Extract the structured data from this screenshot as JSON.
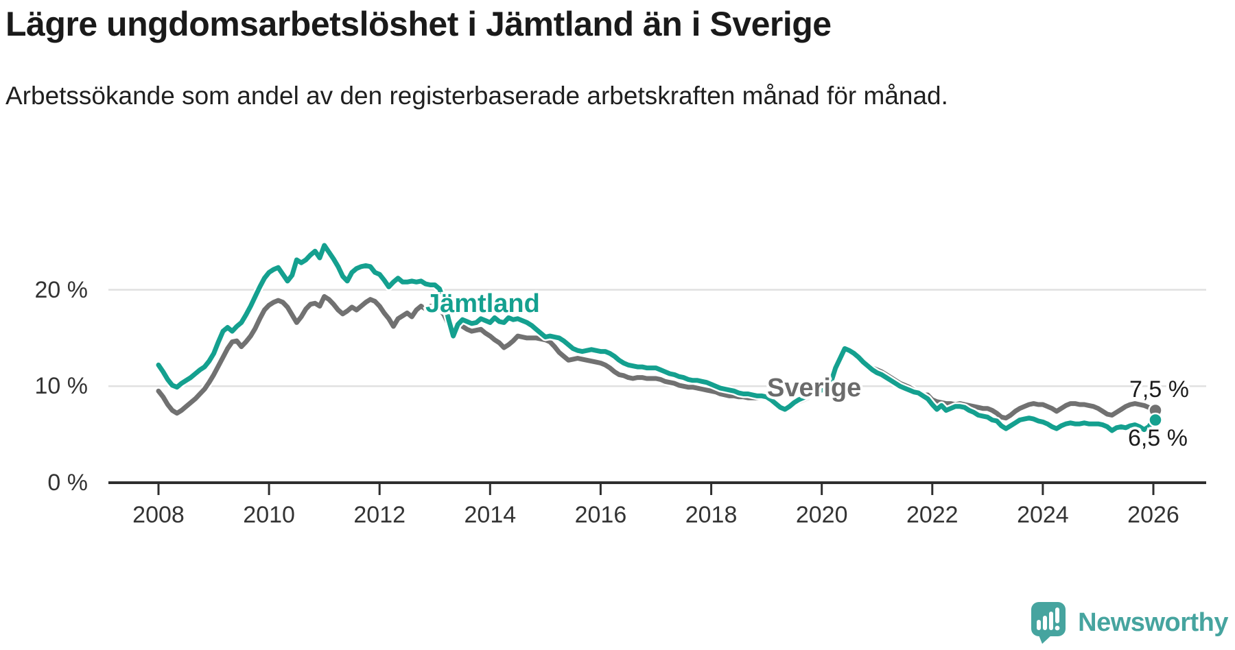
{
  "header": {
    "title": "Lägre ungdomsarbetslöshet i Jämtland än i Sverige",
    "subtitle": "Arbetssökande som andel av den registerbaserade arbetskraften månad för månad."
  },
  "series_labels": {
    "jamtland": "Jämtland",
    "sverige": "Sverige"
  },
  "end_labels": {
    "sverige": "7,5 %",
    "jamtland": "6,5 %"
  },
  "footer": {
    "brand": "Newsworthy"
  },
  "colors": {
    "jamtland": "#14a08f",
    "sverige": "#717171",
    "axis": "#2e2e2e",
    "grid": "#e0e0e0",
    "tick_label": "#333333",
    "value_label": "#1c1c1c",
    "brand_teal": "#46a49f"
  },
  "chart_data": {
    "type": "line",
    "title": "Lägre ungdomsarbetslöshet i Jämtland än i Sverige",
    "subtitle": "Arbetssökande som andel av den registerbaserade arbetskraften månad för månad.",
    "x_start_year": 2008,
    "x_end_year": 2026,
    "x_interval_months": 1,
    "x_tick_years": [
      2008,
      2010,
      2012,
      2014,
      2016,
      2018,
      2020,
      2022,
      2024,
      2026
    ],
    "y_ticks": [
      {
        "value": 20,
        "label": "20 %"
      },
      {
        "value": 10,
        "label": "10 %"
      },
      {
        "value": 0,
        "label": "0 %"
      }
    ],
    "ylim": [
      0,
      26
    ],
    "grid": "horizontal",
    "legend_position": "inline-labels",
    "unit": "percent",
    "series": [
      {
        "name": "Sverige",
        "color": "#717171",
        "end_label": "7,5 %",
        "end_value": 7.5,
        "values": [
          9.5,
          8.9,
          8.1,
          7.5,
          7.2,
          7.5,
          7.9,
          8.3,
          8.7,
          9.2,
          9.7,
          10.4,
          11.2,
          12.1,
          13.0,
          13.9,
          14.6,
          14.7,
          14.1,
          14.6,
          15.2,
          16.0,
          17.0,
          17.9,
          18.4,
          18.7,
          18.9,
          18.7,
          18.2,
          17.4,
          16.6,
          17.2,
          18.0,
          18.5,
          18.6,
          18.3,
          19.3,
          19.0,
          18.5,
          17.9,
          17.5,
          17.8,
          18.2,
          17.9,
          18.3,
          18.7,
          19.0,
          18.8,
          18.3,
          17.6,
          17.0,
          16.2,
          17.0,
          17.3,
          17.6,
          17.2,
          17.9,
          18.3,
          18.0,
          18.3,
          18.3,
          18.0,
          17.4,
          16.4,
          15.9,
          16.4,
          16.2,
          15.9,
          15.7,
          15.8,
          15.9,
          15.5,
          15.2,
          14.8,
          14.5,
          14.0,
          14.3,
          14.7,
          15.2,
          15.1,
          15.0,
          15.0,
          15.0,
          14.9,
          14.8,
          14.6,
          14.1,
          13.5,
          13.1,
          12.7,
          12.8,
          12.9,
          12.8,
          12.7,
          12.6,
          12.5,
          12.4,
          12.2,
          11.9,
          11.5,
          11.2,
          11.1,
          10.9,
          10.8,
          10.9,
          10.9,
          10.8,
          10.8,
          10.8,
          10.7,
          10.5,
          10.4,
          10.3,
          10.1,
          10.0,
          9.9,
          9.9,
          9.8,
          9.7,
          9.6,
          9.5,
          9.4,
          9.2,
          9.1,
          9.0,
          9.0,
          8.9,
          8.9,
          8.8,
          8.8,
          8.8,
          8.9,
          8.9,
          8.6,
          8.2,
          7.8,
          7.6,
          7.8,
          8.1,
          8.4,
          8.6,
          8.8,
          9.1,
          9.4,
          9.7,
          9.9,
          10.7,
          12.1,
          13.1,
          13.6,
          13.7,
          13.5,
          13.1,
          12.7,
          12.3,
          11.9,
          11.7,
          11.5,
          11.2,
          10.9,
          10.6,
          10.3,
          10.1,
          9.9,
          9.6,
          9.3,
          9.1,
          9.1,
          8.6,
          8.4,
          8.3,
          8.2,
          8.2,
          8.1,
          8.2,
          8.1,
          8.0,
          7.9,
          7.8,
          7.7,
          7.7,
          7.5,
          7.2,
          6.8,
          6.7,
          7.0,
          7.4,
          7.7,
          7.9,
          8.1,
          8.2,
          8.1,
          8.1,
          7.9,
          7.7,
          7.4,
          7.7,
          8.0,
          8.2,
          8.2,
          8.1,
          8.1,
          8.0,
          7.9,
          7.7,
          7.4,
          7.1,
          7.0,
          7.3,
          7.6,
          7.9,
          8.1,
          8.2,
          8.1,
          8.0,
          7.8,
          7.5
        ]
      },
      {
        "name": "Jämtland",
        "color": "#14a08f",
        "end_label": "6,5 %",
        "end_value": 6.5,
        "values": [
          12.2,
          11.5,
          10.7,
          10.1,
          9.9,
          10.3,
          10.6,
          10.9,
          11.3,
          11.7,
          12.0,
          12.6,
          13.4,
          14.6,
          15.7,
          16.1,
          15.7,
          16.2,
          16.6,
          17.4,
          18.3,
          19.3,
          20.3,
          21.2,
          21.8,
          22.1,
          22.3,
          21.6,
          20.9,
          21.5,
          23.1,
          22.8,
          23.1,
          23.6,
          24.0,
          23.3,
          24.6,
          23.9,
          23.2,
          22.4,
          21.4,
          20.9,
          21.8,
          22.2,
          22.4,
          22.5,
          22.4,
          21.8,
          21.6,
          21.0,
          20.3,
          20.8,
          21.2,
          20.8,
          20.8,
          20.9,
          20.8,
          20.9,
          20.6,
          20.5,
          20.5,
          20.1,
          18.9,
          16.9,
          15.2,
          16.4,
          16.9,
          16.7,
          16.5,
          16.6,
          17.0,
          16.8,
          16.6,
          17.1,
          16.7,
          16.6,
          17.1,
          16.9,
          17.0,
          16.8,
          16.6,
          16.3,
          15.9,
          15.5,
          15.1,
          15.2,
          15.1,
          15.0,
          14.7,
          14.3,
          13.9,
          13.7,
          13.6,
          13.7,
          13.8,
          13.7,
          13.6,
          13.6,
          13.4,
          13.1,
          12.7,
          12.4,
          12.2,
          12.1,
          12.0,
          12.0,
          11.9,
          11.9,
          11.9,
          11.7,
          11.5,
          11.3,
          11.2,
          11.0,
          10.9,
          10.7,
          10.6,
          10.6,
          10.5,
          10.4,
          10.2,
          10.0,
          9.8,
          9.7,
          9.6,
          9.5,
          9.3,
          9.2,
          9.2,
          9.1,
          9.0,
          9.0,
          8.9,
          8.6,
          8.2,
          7.8,
          7.6,
          7.9,
          8.3,
          8.6,
          8.8,
          9.0,
          9.2,
          9.4,
          9.6,
          9.7,
          10.4,
          11.9,
          12.9,
          13.9,
          13.7,
          13.4,
          13.0,
          12.5,
          12.1,
          11.7,
          11.4,
          11.2,
          10.9,
          10.6,
          10.3,
          10.0,
          9.8,
          9.6,
          9.4,
          9.3,
          9.0,
          8.7,
          8.1,
          7.6,
          8.0,
          7.5,
          7.7,
          7.9,
          7.9,
          7.8,
          7.5,
          7.3,
          7.0,
          6.9,
          6.8,
          6.5,
          6.4,
          5.9,
          5.6,
          5.9,
          6.2,
          6.5,
          6.6,
          6.7,
          6.6,
          6.4,
          6.3,
          6.1,
          5.8,
          5.6,
          5.9,
          6.1,
          6.2,
          6.1,
          6.1,
          6.2,
          6.1,
          6.1,
          6.1,
          6.0,
          5.8,
          5.4,
          5.7,
          5.8,
          5.7,
          5.9,
          6.0,
          5.8,
          5.5,
          5.8,
          6.5
        ]
      }
    ]
  }
}
